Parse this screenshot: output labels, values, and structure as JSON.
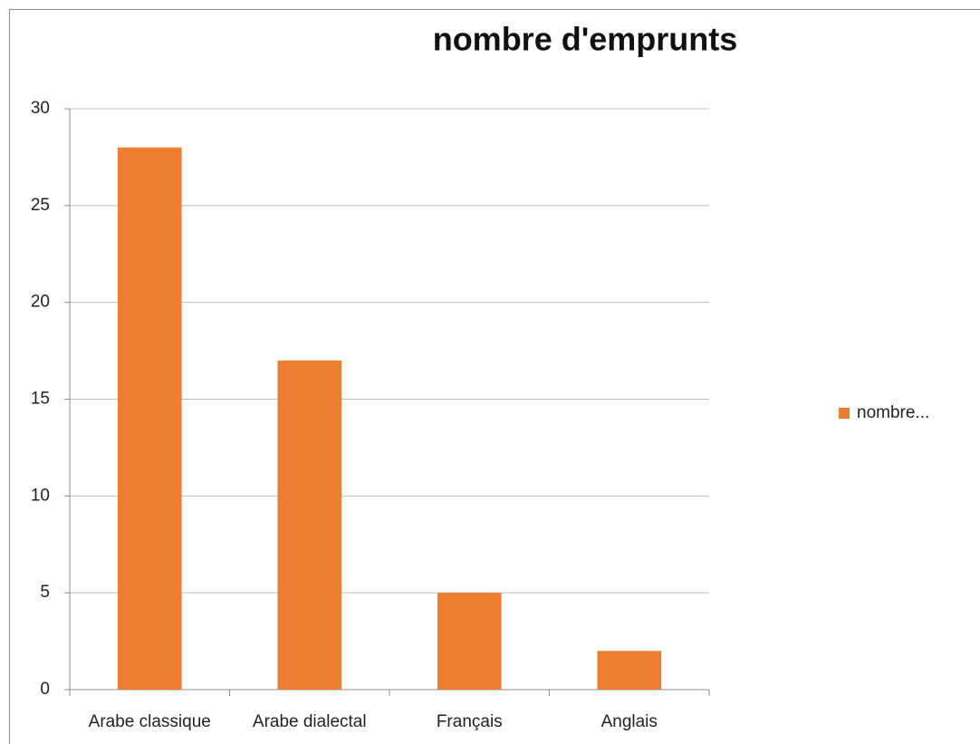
{
  "chart_data": {
    "type": "bar",
    "title": "nombre d'emprunts",
    "categories": [
      "Arabe classique",
      "Arabe dialectal",
      "Français",
      "Anglais"
    ],
    "series": [
      {
        "name": "nombre...",
        "color": "#ed7d31",
        "values": [
          28,
          17,
          5,
          2
        ]
      }
    ],
    "ylim": [
      0,
      30
    ],
    "yticks": [
      0,
      5,
      10,
      15,
      20,
      25,
      30
    ],
    "grid": true,
    "legend": "right"
  }
}
